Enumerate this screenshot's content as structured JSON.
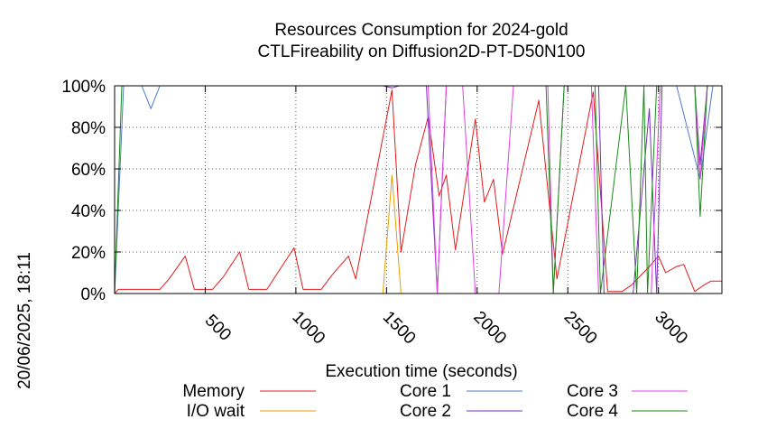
{
  "chart_data": {
    "type": "line",
    "title": "Resources Consumption for 2024-gold",
    "subtitle": "CTLFireability on Diffusion2D-PT-D50N100",
    "xlabel": "Execution time (seconds)",
    "ylabel": "",
    "side_label": "20/06/2025, 18:11",
    "xlim": [
      0,
      3350
    ],
    "ylim": [
      0,
      100
    ],
    "xticks": [
      500,
      1000,
      1500,
      2000,
      2500,
      3000
    ],
    "yticks": [
      0,
      20,
      40,
      60,
      80,
      100
    ],
    "ytick_labels": [
      "0%",
      "20%",
      "40%",
      "60%",
      "80%",
      "100%"
    ],
    "grid": true,
    "legend_position": "bottom",
    "series": [
      {
        "name": "Memory",
        "color": "#e41a1c",
        "points": [
          [
            0,
            0
          ],
          [
            20,
            2
          ],
          [
            100,
            2
          ],
          [
            200,
            2
          ],
          [
            250,
            2
          ],
          [
            300,
            7
          ],
          [
            390,
            18
          ],
          [
            440,
            2
          ],
          [
            500,
            2
          ],
          [
            540,
            2
          ],
          [
            600,
            8
          ],
          [
            690,
            20
          ],
          [
            740,
            2
          ],
          [
            800,
            2
          ],
          [
            840,
            2
          ],
          [
            900,
            10
          ],
          [
            990,
            22
          ],
          [
            1040,
            2
          ],
          [
            1100,
            2
          ],
          [
            1140,
            2
          ],
          [
            1200,
            9
          ],
          [
            1290,
            18
          ],
          [
            1330,
            7
          ],
          [
            1530,
            98
          ],
          [
            1580,
            20
          ],
          [
            1660,
            62
          ],
          [
            1730,
            85
          ],
          [
            1790,
            47
          ],
          [
            1830,
            57
          ],
          [
            1880,
            21
          ],
          [
            1990,
            84
          ],
          [
            2040,
            44
          ],
          [
            2090,
            55
          ],
          [
            2140,
            19
          ],
          [
            2340,
            93
          ],
          [
            2440,
            7
          ],
          [
            2640,
            97
          ],
          [
            2720,
            1
          ],
          [
            2800,
            1
          ],
          [
            2850,
            4
          ],
          [
            2950,
            13
          ],
          [
            3000,
            18
          ],
          [
            3040,
            10
          ],
          [
            3100,
            13
          ],
          [
            3140,
            14
          ],
          [
            3200,
            1
          ],
          [
            3250,
            4
          ],
          [
            3290,
            6
          ],
          [
            3350,
            6
          ]
        ]
      },
      {
        "name": "I/O wait",
        "color": "#e69f00",
        "points": [
          [
            1480,
            0
          ],
          [
            1530,
            57
          ],
          [
            1580,
            0
          ]
        ]
      },
      {
        "name": "Core 1",
        "color": "#4f78c9",
        "points": [
          [
            0,
            0
          ],
          [
            50,
            100
          ],
          [
            150,
            100
          ],
          [
            200,
            89
          ],
          [
            250,
            100
          ],
          [
            3100,
            100
          ],
          [
            3230,
            55
          ],
          [
            3300,
            100
          ],
          [
            3350,
            100
          ]
        ]
      },
      {
        "name": "Core 2",
        "color": "#7b2fbf",
        "points": [
          [
            1480,
            100
          ],
          [
            1530,
            99
          ],
          [
            1570,
            100
          ],
          [
            1720,
            100
          ],
          [
            1780,
            0
          ],
          [
            1830,
            100
          ],
          [
            2670,
            100
          ],
          [
            2700,
            0
          ],
          [
            2860,
            0
          ],
          [
            2950,
            89
          ],
          [
            2990,
            0
          ],
          [
            3020,
            100
          ],
          [
            3200,
            100
          ],
          [
            3230,
            62
          ],
          [
            3270,
            100
          ]
        ]
      },
      {
        "name": "Core 3",
        "color": "#e040e0",
        "points": [
          [
            1730,
            100
          ],
          [
            1780,
            0
          ],
          [
            1830,
            100
          ],
          [
            1920,
            100
          ],
          [
            1990,
            0
          ],
          [
            2120,
            0
          ],
          [
            2200,
            100
          ],
          [
            2390,
            100
          ],
          [
            2420,
            0
          ],
          [
            2480,
            100
          ],
          [
            2630,
            100
          ],
          [
            2670,
            0
          ],
          [
            2960,
            0
          ],
          [
            3010,
            100
          ],
          [
            3200,
            100
          ],
          [
            3230,
            55
          ],
          [
            3270,
            100
          ]
        ]
      },
      {
        "name": "Core 4",
        "color": "#1a8a1a",
        "points": [
          [
            0,
            0
          ],
          [
            40,
            100
          ],
          [
            2380,
            100
          ],
          [
            2420,
            0
          ],
          [
            2480,
            100
          ],
          [
            2530,
            100
          ],
          [
            2580,
            100
          ],
          [
            2650,
            100
          ],
          [
            2680,
            0
          ],
          [
            2820,
            100
          ],
          [
            2880,
            0
          ],
          [
            2920,
            100
          ],
          [
            2940,
            0
          ],
          [
            2990,
            100
          ],
          [
            3200,
            100
          ],
          [
            3230,
            37
          ],
          [
            3270,
            100
          ],
          [
            3350,
            100
          ]
        ]
      }
    ]
  }
}
